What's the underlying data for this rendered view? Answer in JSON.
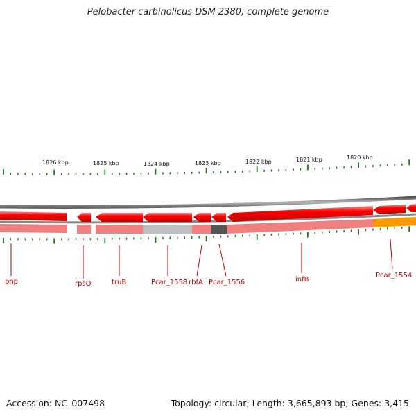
{
  "title": "Pelobacter carbinolicus DSM 2380, complete genome",
  "footer": {
    "accession": "Accession: NC_007498",
    "summary": "Topology: circular; Length: 3,665,893 bp; Genes: 3,415"
  },
  "scale_labels": [
    "1826 kbp",
    "1825 kbp",
    "1824 kbp",
    "1823 kbp",
    "1822 kbp",
    "1821 kbp",
    "1820 kbp"
  ],
  "gene_labels": [
    "pnp",
    "rpsO",
    "truB",
    "Pcar_1558",
    "rbfA",
    "Pcar_1556",
    "infB",
    "Pcar_1554"
  ],
  "colors": {
    "gene": "#ff0000",
    "gene_light": "#f08080",
    "backbone": "#888888",
    "tick": "#1a7a1a",
    "label": "#c00000",
    "hypothetical": "#c0c0c0",
    "dark_feature": "#555555",
    "orange_feature": "#ff9900"
  }
}
